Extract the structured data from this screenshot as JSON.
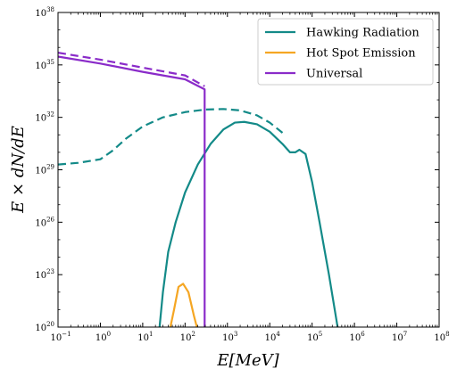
{
  "chart_data": {
    "type": "line",
    "xlabel": "E[MeV]",
    "ylabel": "E × dN/dE",
    "xscale": "log",
    "yscale": "log",
    "xlim": [
      0.1,
      100000000
    ],
    "ylim": [
      1e+20,
      1e+38
    ],
    "x_ticks": [
      {
        "mantissa": "10",
        "exp": "−1",
        "value": 0.1
      },
      {
        "mantissa": "10",
        "exp": "0",
        "value": 1
      },
      {
        "mantissa": "10",
        "exp": "1",
        "value": 10
      },
      {
        "mantissa": "10",
        "exp": "2",
        "value": 100
      },
      {
        "mantissa": "10",
        "exp": "3",
        "value": 1000
      },
      {
        "mantissa": "10",
        "exp": "4",
        "value": 10000
      },
      {
        "mantissa": "10",
        "exp": "5",
        "value": 100000
      },
      {
        "mantissa": "10",
        "exp": "6",
        "value": 1000000
      },
      {
        "mantissa": "10",
        "exp": "7",
        "value": 10000000
      },
      {
        "mantissa": "10",
        "exp": "8",
        "value": 100000000
      }
    ],
    "y_ticks": [
      {
        "mantissa": "10",
        "exp": "20",
        "value": 1e+20
      },
      {
        "mantissa": "10",
        "exp": "23",
        "value": 1e+23
      },
      {
        "mantissa": "10",
        "exp": "26",
        "value": 1e+26
      },
      {
        "mantissa": "10",
        "exp": "29",
        "value": 1e+29
      },
      {
        "mantissa": "10",
        "exp": "32",
        "value": 1e+32
      },
      {
        "mantissa": "10",
        "exp": "35",
        "value": 1e+35
      },
      {
        "mantissa": "10",
        "exp": "38",
        "value": 1e+38
      }
    ],
    "legend_position": "top-right",
    "series": [
      {
        "name": "Hawking Radiation",
        "color": "#138a88",
        "style": "solid",
        "points": [
          [
            25,
            1e+20
          ],
          [
            30,
            1e+22
          ],
          [
            40,
            2e+24
          ],
          [
            60,
            1e+26
          ],
          [
            100,
            5e+27
          ],
          [
            200,
            2e+29
          ],
          [
            400,
            3e+30
          ],
          [
            800,
            2e+31
          ],
          [
            1500,
            5e+31
          ],
          [
            2500,
            5.5e+31
          ],
          [
            5000,
            4e+31
          ],
          [
            10000,
            1.5e+31
          ],
          [
            20000,
            3e+30
          ],
          [
            30000,
            1e+30
          ],
          [
            40000,
            1e+30
          ],
          [
            50000,
            1.4e+30
          ],
          [
            70000,
            8e+29
          ],
          [
            100000,
            2e+28
          ],
          [
            150000,
            1e+26
          ],
          [
            250000,
            1e+23
          ],
          [
            400000,
            1e+20
          ]
        ]
      },
      {
        "name": "Hawking Radiation (dashed)",
        "color": "#138a88",
        "style": "dashed",
        "points": [
          [
            0.1,
            2e+29
          ],
          [
            0.3,
            2.5e+29
          ],
          [
            1,
            4e+29
          ],
          [
            2,
            1.3e+30
          ],
          [
            4,
            6e+30
          ],
          [
            10,
            3e+31
          ],
          [
            30,
            1e+32
          ],
          [
            100,
            2e+32
          ],
          [
            300,
            2.8e+32
          ],
          [
            800,
            3e+32
          ],
          [
            2000,
            2.5e+32
          ],
          [
            5000,
            1.3e+32
          ],
          [
            10000,
            5e+31
          ],
          [
            20000,
            1.3e+31
          ]
        ]
      },
      {
        "name": "Hot Spot Emission",
        "color": "#f5a623",
        "style": "solid",
        "points": [
          [
            45,
            1e+20
          ],
          [
            55,
            1e+21
          ],
          [
            70,
            2e+22
          ],
          [
            90,
            3e+22
          ],
          [
            120,
            1e+22
          ],
          [
            160,
            5e+20
          ],
          [
            190,
            1e+20
          ]
        ]
      },
      {
        "name": "Universal",
        "color": "#8a2bc9",
        "style": "solid",
        "points": [
          [
            0.1,
            3e+35
          ],
          [
            1,
            1.2e+35
          ],
          [
            10,
            4e+34
          ],
          [
            100,
            1.5e+34
          ],
          [
            290,
            4e+33
          ],
          [
            290,
            1e+20
          ]
        ]
      },
      {
        "name": "Universal (dashed)",
        "color": "#8a2bc9",
        "style": "dashed",
        "points": [
          [
            0.1,
            5e+35
          ],
          [
            1,
            2e+35
          ],
          [
            10,
            7e+34
          ],
          [
            100,
            2.5e+34
          ],
          [
            290,
            6e+33
          ]
        ]
      }
    ],
    "legend": [
      {
        "label": "Hawking Radiation",
        "color": "#138a88"
      },
      {
        "label": "Hot Spot Emission",
        "color": "#f5a623"
      },
      {
        "label": "Universal",
        "color": "#8a2bc9"
      }
    ]
  }
}
